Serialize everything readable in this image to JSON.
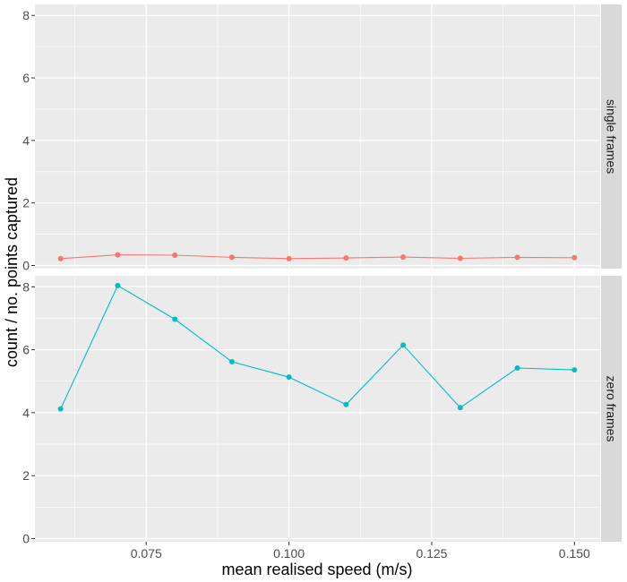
{
  "chart_data": {
    "type": "line",
    "xlabel": "mean realised speed (m/s)",
    "ylabel": "count / no. points captured",
    "xlim": [
      0.0555,
      0.1545
    ],
    "ylim": [
      -0.1,
      8.35
    ],
    "x_ticks": [
      0.075,
      0.1,
      0.125,
      0.15
    ],
    "x_tick_labels": [
      "0.075",
      "0.100",
      "0.125",
      "0.150"
    ],
    "y_ticks": [
      0,
      2,
      4,
      6,
      8
    ],
    "y_tick_labels": [
      "0",
      "2",
      "4",
      "6",
      "8"
    ],
    "grid": true,
    "background": "#ebebeb",
    "strip_background": "#d9d9d9",
    "panels": [
      {
        "strip_label": "single frames",
        "color": "#f8766d",
        "x": [
          0.06,
          0.07,
          0.08,
          0.09,
          0.1,
          0.11,
          0.12,
          0.13,
          0.14,
          0.15
        ],
        "y": [
          0.22,
          0.34,
          0.33,
          0.26,
          0.22,
          0.24,
          0.27,
          0.23,
          0.26,
          0.25
        ]
      },
      {
        "strip_label": "zero frames",
        "color": "#00bfc4",
        "x": [
          0.06,
          0.07,
          0.08,
          0.09,
          0.1,
          0.11,
          0.12,
          0.13,
          0.14,
          0.15
        ],
        "y": [
          4.12,
          8.04,
          6.97,
          5.62,
          5.13,
          4.26,
          6.15,
          4.16,
          5.42,
          5.36
        ]
      }
    ]
  }
}
